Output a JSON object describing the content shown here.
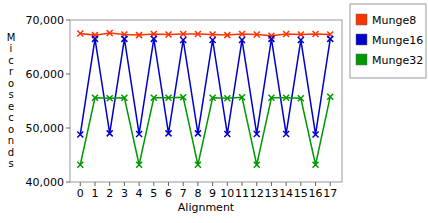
{
  "chart_data": {
    "type": "line",
    "x_label": "Alignment",
    "y_label": "Microseconds",
    "x": [
      0,
      1,
      2,
      3,
      4,
      5,
      6,
      7,
      8,
      9,
      10,
      11,
      12,
      13,
      14,
      15,
      16,
      17
    ],
    "xlim": [
      -0.7,
      17.8
    ],
    "xticks": [
      0,
      1,
      2,
      3,
      4,
      5,
      6,
      7,
      8,
      9,
      10,
      11,
      12,
      13,
      14,
      15,
      16,
      17
    ],
    "ylim": [
      40000,
      70000
    ],
    "yticks": [
      {
        "value": 40000,
        "label": "40,000"
      },
      {
        "value": 50000,
        "label": "50,000"
      },
      {
        "value": 60000,
        "label": "60,000"
      },
      {
        "value": 70000,
        "label": "70,000"
      }
    ],
    "grid": false,
    "legend": "top-right",
    "marker": "x",
    "series": [
      {
        "name": "Munge8",
        "color": "#ff3300",
        "values": [
          67500,
          67200,
          67600,
          67300,
          67200,
          67400,
          67300,
          67400,
          67400,
          67300,
          67200,
          67400,
          67300,
          67100,
          67400,
          67300,
          67400,
          67300
        ]
      },
      {
        "name": "Munge16",
        "color": "#0000cc",
        "values": [
          48800,
          66500,
          49000,
          66500,
          48900,
          66500,
          49000,
          66300,
          49000,
          66300,
          48900,
          66300,
          48900,
          66500,
          48900,
          66300,
          48800,
          66500
        ]
      },
      {
        "name": "Munge32",
        "color": "#009900",
        "values": [
          43200,
          55600,
          55500,
          55600,
          43200,
          55600,
          55600,
          55700,
          43200,
          55600,
          55500,
          55700,
          43200,
          55600,
          55600,
          55500,
          43200,
          55800
        ]
      }
    ]
  }
}
